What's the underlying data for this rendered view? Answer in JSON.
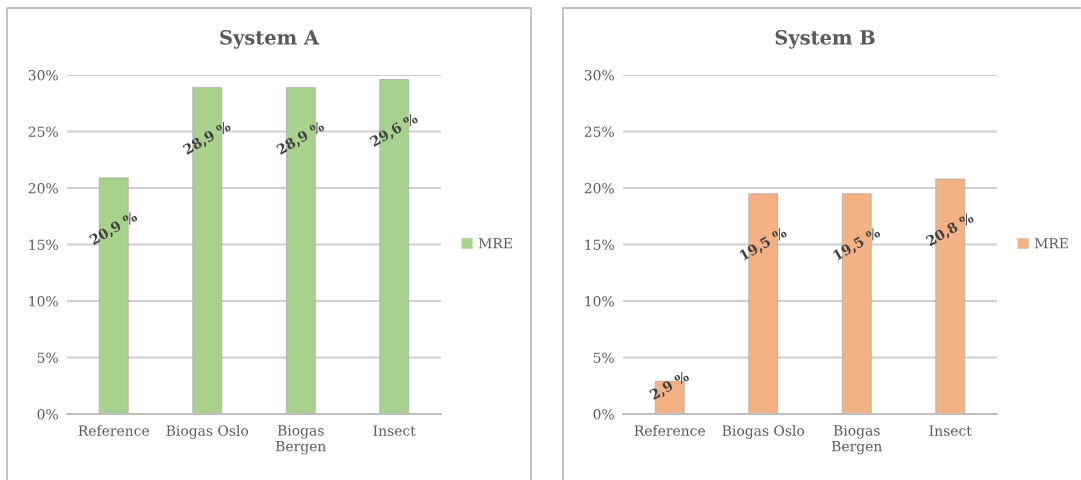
{
  "chart_data": [
    {
      "type": "bar",
      "title": "System A",
      "categories": [
        "Reference",
        "Biogas Oslo",
        "Biogas Bergen",
        "Insect"
      ],
      "series": [
        {
          "name": "MRE",
          "color": "#a9d18e",
          "values": [
            20.9,
            28.9,
            28.9,
            29.6
          ]
        }
      ],
      "value_labels": [
        "20,9 %",
        "28,9 %",
        "28,9 %",
        "29,6 %"
      ],
      "ylim": [
        0,
        30
      ],
      "yticks": [
        {
          "value": 0,
          "label": "0%"
        },
        {
          "value": 5,
          "label": "5%"
        },
        {
          "value": 10,
          "label": "10%"
        },
        {
          "value": 15,
          "label": "15%"
        },
        {
          "value": 20,
          "label": "20%"
        },
        {
          "value": 25,
          "label": "25%"
        },
        {
          "value": 30,
          "label": "30%"
        }
      ],
      "grid": "y",
      "legend": "right"
    },
    {
      "type": "bar",
      "title": "System B",
      "categories": [
        "Reference",
        "Biogas Oslo",
        "Biogas Bergen",
        "Insect"
      ],
      "series": [
        {
          "name": "MRE",
          "color": "#f4b183",
          "values": [
            2.9,
            19.5,
            19.5,
            20.8
          ]
        }
      ],
      "value_labels": [
        "2,9 %",
        "19,5 %",
        "19,5 %",
        "20,8 %"
      ],
      "ylim": [
        0,
        30
      ],
      "yticks": [
        {
          "value": 0,
          "label": "0%"
        },
        {
          "value": 5,
          "label": "5%"
        },
        {
          "value": 10,
          "label": "10%"
        },
        {
          "value": 15,
          "label": "15%"
        },
        {
          "value": 20,
          "label": "20%"
        },
        {
          "value": 25,
          "label": "25%"
        },
        {
          "value": 30,
          "label": "30%"
        }
      ],
      "grid": "y",
      "legend": "right"
    }
  ]
}
